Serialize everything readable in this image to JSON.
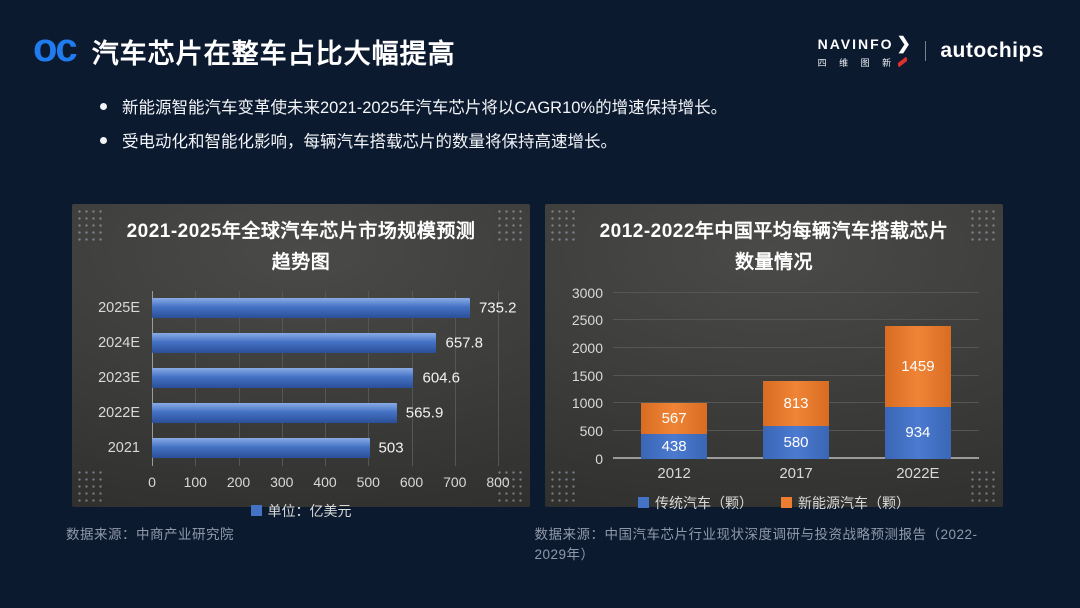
{
  "slide": {
    "header": {
      "logo": "oc",
      "title": "汽车芯片在整车占比大幅提高"
    },
    "brand": {
      "navinfo": "NAVINFO",
      "arrow": "❯",
      "navinfo_cn": "四 维 图 新",
      "autochips": "autochips"
    },
    "bullets": [
      "新能源智能汽车变革使未来2021-2025年汽车芯片将以CAGR10%的增速保持增长。",
      "受电动化和智能化影响，每辆汽车搭载芯片的数量将保持高速增长。"
    ],
    "sources": [
      "数据来源：中商产业研究院",
      "数据来源：中国汽车芯片行业现状深度调研与投资战略预测报告（2022-2029年）"
    ],
    "colors": {
      "accent_blue": "#4472c4",
      "accent_orange": "#ed7d31",
      "logo_blue": "#1f7bee",
      "background": "#0c1a2f"
    }
  },
  "chart_data": [
    {
      "type": "bar",
      "orientation": "horizontal",
      "title": "2021-2025年全球汽车芯片市场规模预测趋势图",
      "title_lines": [
        "2021-2025年全球汽车芯片市场规模预测",
        "趋势图"
      ],
      "categories": [
        "2025E",
        "2024E",
        "2023E",
        "2022E",
        "2021"
      ],
      "values": [
        735.2,
        657.8,
        604.6,
        565.9,
        503
      ],
      "value_labels": [
        "735.2",
        "657.8",
        "604.6",
        "565.9",
        "503"
      ],
      "xlim": [
        0,
        800
      ],
      "x_ticks": [
        0,
        100,
        200,
        300,
        400,
        500,
        600,
        700,
        800
      ],
      "grid": true,
      "legend_position": "bottom",
      "legend": [
        {
          "label": "单位：亿美元",
          "color": "#4472c4"
        }
      ],
      "bar_color": "#4472c4"
    },
    {
      "type": "bar",
      "orientation": "vertical",
      "stacked": true,
      "title": "2012-2022年中国平均每辆汽车搭载芯片数量情况",
      "title_lines": [
        "2012-2022年中国平均每辆汽车搭载芯片",
        "数量情况"
      ],
      "categories": [
        "2012",
        "2017",
        "2022E"
      ],
      "series": [
        {
          "name": "传统汽车（颗）",
          "color": "#4472c4",
          "values": [
            438,
            580,
            934
          ]
        },
        {
          "name": "新能源汽车（颗）",
          "color": "#ed7d31",
          "values": [
            567,
            813,
            1459
          ]
        }
      ],
      "totals": [
        1005,
        1393,
        2393
      ],
      "ylim": [
        0,
        3000
      ],
      "y_ticks": [
        0,
        500,
        1000,
        1500,
        2000,
        2500,
        3000
      ],
      "grid": true,
      "legend_position": "bottom"
    }
  ]
}
